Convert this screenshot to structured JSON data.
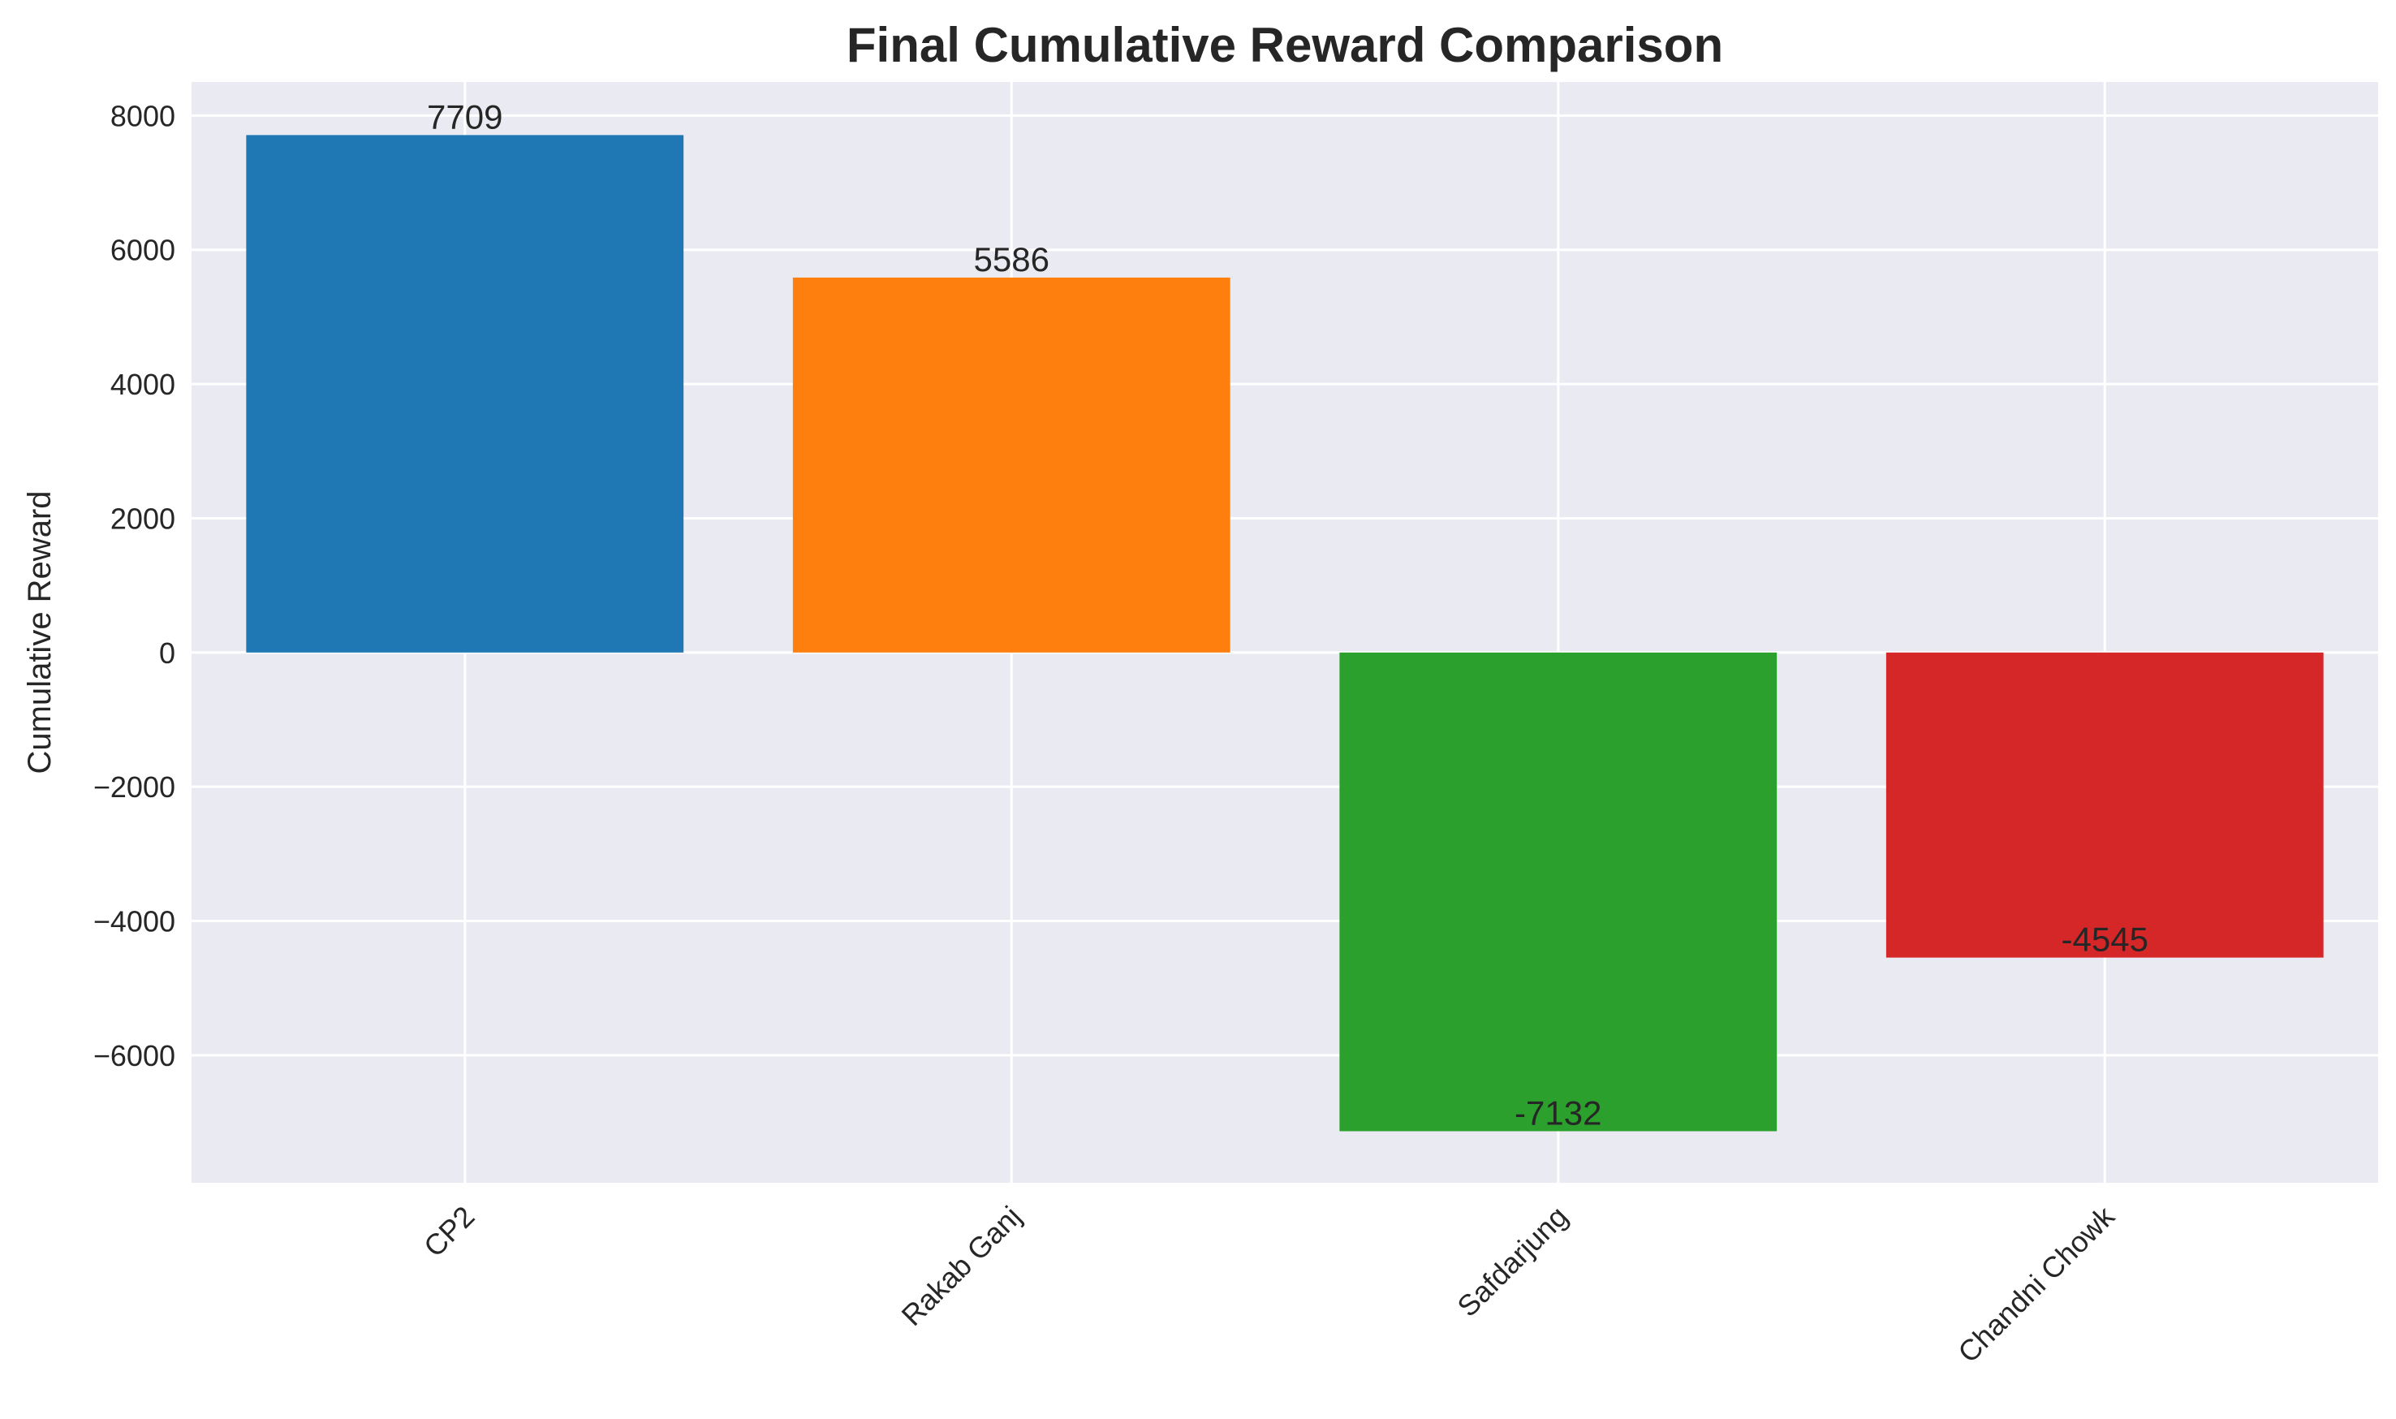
{
  "chart_data": {
    "type": "bar",
    "title": "Final Cumulative Reward Comparison",
    "xlabel": "",
    "ylabel": "Cumulative Reward",
    "categories": [
      "CP2",
      "Rakab Ganj",
      "Safdarjung",
      "Chandni Chowk"
    ],
    "values": [
      7709,
      5586,
      -7132,
      -4545
    ],
    "value_labels": [
      "7709",
      "5586",
      "-7132",
      "-4545"
    ],
    "colors": [
      "#1f77b4",
      "#ff7f0e",
      "#2ca02c",
      "#d62728"
    ],
    "ylim": [
      -7900,
      8500
    ],
    "yticks": [
      8000,
      6000,
      4000,
      2000,
      0,
      -2000,
      -4000,
      -6000
    ],
    "ytick_labels": [
      "8000",
      "6000",
      "4000",
      "2000",
      "0",
      "−2000",
      "−4000",
      "−6000"
    ],
    "grid": true,
    "background": "#eaeaf2"
  }
}
